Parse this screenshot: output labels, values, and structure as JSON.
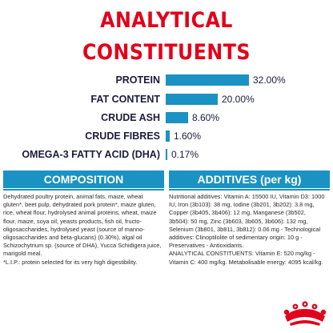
{
  "title": "ANALYTICAL CONSTITUENTS",
  "colors": {
    "title_red": "#e2001a",
    "bar_blue": "#1a92c4",
    "text_dark": "#1c1c3c"
  },
  "chart_data": {
    "type": "bar",
    "orientation": "horizontal",
    "categories": [
      "PROTEIN",
      "FAT CONTENT",
      "CRUDE ASH",
      "CRUDE FIBRES",
      "OMEGA-3 FATTY ACID (DHA)"
    ],
    "values": [
      32.0,
      20.0,
      8.6,
      1.6,
      0.17
    ],
    "value_labels": [
      "32.00%",
      "20.00%",
      "8.60%",
      "1.60%",
      "0.17%"
    ],
    "unit": "%",
    "xlim": [
      0,
      32
    ]
  },
  "composition": {
    "header": "COMPOSITION",
    "body": "Dehydrated poultry protein, animal fats, maize, wheat gluten*, beet pulp, dehydrated pork protein*, maize gluten, rice, wheat flour, hydrolysed animal proteins, wheat, maize flour, maize, soya oil, yeasts products, fish oil, fructo-oligosaccharides, hydrolysed yeast (source of manno-oligosaccharides and beta-glucans) (0.30%), algal oil Schizochytrium sp. (source of DHA), Yucca Schidigera juice, marigold meal.",
    "footnote": "*L.I.P.: protein selected for its very high digestibility."
  },
  "additives": {
    "header": "ADDITIVES (per kg)",
    "nutritional": "Nutritional additives: Vitamin A: 15500 IU, Vitamin D3: 1000 IU, Iron (3b103): 38 mg, Iodine (3b201, 3b202): 3.8 mg, Copper (3b405, 3b406): 12 mg, Manganese (3b502, 3b504): 50 mg, Zinc (3b603, 3b605, 3b606): 132 mg, Selenium (3b801, 3b811, 3b812): 0.06 mg - Technological additives: Clinoptilolite of sedimentary origin: 10 g - Preservatives - Antioxidants.",
    "analytical": "ANALYTICAL CONSTITUENTS: Vitamin E: 520 mg/kg - Vitamin C: 400 mg/kg. Metabolisable energy: 4095 kcal/kg."
  },
  "logo": {
    "icon": "royal-canin-crown-logo"
  }
}
